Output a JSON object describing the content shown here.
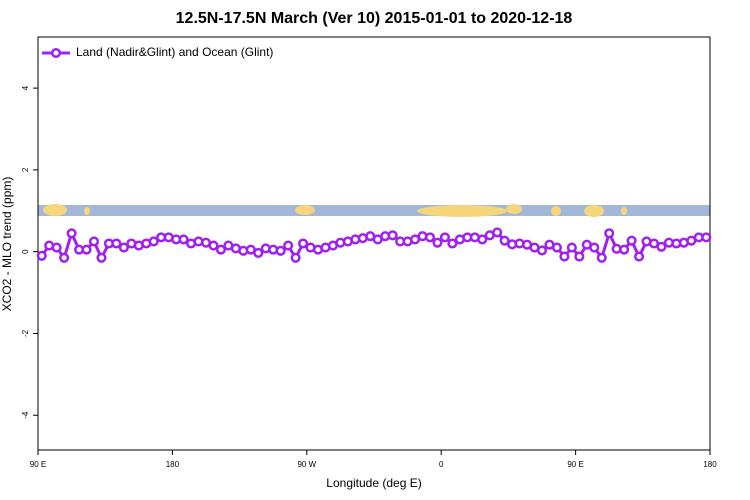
{
  "chart_data": {
    "type": "line",
    "title": "12.5N-17.5N March (Ver 10)   2015-01-01 to 2020-12-18",
    "x_label": "Longitude (deg E)",
    "y_label": "XCO2 - MLO trend (ppm)",
    "legend": "top-left",
    "xlim": [
      90,
      540
    ],
    "xticks": [
      {
        "value": 90,
        "label": "90 E"
      },
      {
        "value": 180,
        "label": "180"
      },
      {
        "value": 270,
        "label": "90 W"
      },
      {
        "value": 360,
        "label": "0"
      },
      {
        "value": 450,
        "label": "90 E"
      },
      {
        "value": 540,
        "label": "180"
      }
    ],
    "ylim": [
      -4.85,
      5.25
    ],
    "yticks": [
      -4,
      -2,
      0,
      2,
      4
    ],
    "x": [
      92.5,
      97.5,
      102.5,
      107.5,
      112.5,
      117.5,
      122.5,
      127.5,
      132.5,
      137.5,
      142.5,
      147.5,
      152.5,
      157.5,
      162.5,
      167.5,
      172.5,
      177.5,
      182.5,
      187.5,
      192.5,
      197.5,
      202.5,
      207.5,
      212.5,
      217.5,
      222.5,
      227.5,
      232.5,
      237.5,
      242.5,
      247.5,
      252.5,
      257.5,
      262.5,
      267.5,
      272.5,
      277.5,
      282.5,
      287.5,
      292.5,
      297.5,
      302.5,
      307.5,
      312.5,
      317.5,
      322.5,
      327.5,
      332.5,
      337.5,
      342.5,
      347.5,
      352.5,
      357.5,
      362.5,
      367.5,
      372.5,
      377.5,
      382.5,
      387.5,
      392.5,
      397.5,
      402.5,
      407.5,
      412.5,
      417.5,
      422.5,
      427.5,
      432.5,
      437.5,
      442.5,
      447.5,
      452.5,
      457.5,
      462.5,
      467.5,
      472.5,
      477.5,
      482.5,
      487.5,
      492.5,
      497.5,
      502.5,
      507.5,
      512.5,
      517.5,
      522.5,
      527.5,
      532.5,
      537.5
    ],
    "series": [
      {
        "name": "Land (Nadir&Glint) and Ocean (Glint)",
        "color": "#a020f0",
        "values": [
          -0.1,
          0.15,
          0.1,
          -0.15,
          0.45,
          0.05,
          0.05,
          0.25,
          -0.15,
          0.2,
          0.2,
          0.1,
          0.2,
          0.15,
          0.2,
          0.25,
          0.35,
          0.35,
          0.3,
          0.3,
          0.2,
          0.25,
          0.22,
          0.15,
          0.05,
          0.15,
          0.08,
          0.02,
          0.05,
          -0.03,
          0.08,
          0.05,
          0.02,
          0.15,
          -0.15,
          0.2,
          0.1,
          0.05,
          0.1,
          0.15,
          0.22,
          0.25,
          0.3,
          0.33,
          0.38,
          0.3,
          0.38,
          0.4,
          0.25,
          0.25,
          0.3,
          0.38,
          0.35,
          0.22,
          0.35,
          0.2,
          0.3,
          0.35,
          0.35,
          0.3,
          0.4,
          0.47,
          0.27,
          0.18,
          0.2,
          0.17,
          0.1,
          0.03,
          0.17,
          0.1,
          -0.12,
          0.1,
          -0.12,
          0.17,
          0.1,
          -0.15,
          0.45,
          0.07,
          0.05,
          0.27,
          -0.12,
          0.25,
          0.2,
          0.12,
          0.22,
          0.2,
          0.22,
          0.27,
          0.35,
          0.35
        ]
      }
    ]
  }
}
